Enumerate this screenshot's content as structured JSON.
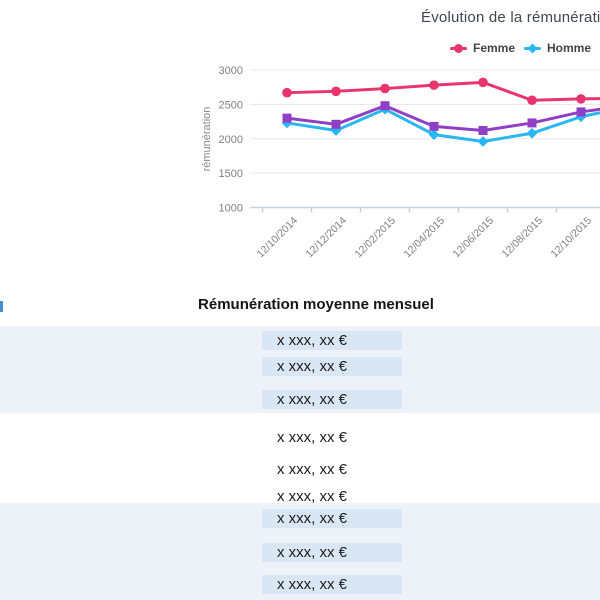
{
  "chart": {
    "title": "Évolution de la rémunération",
    "y_axis_title": "rémunération",
    "legend": [
      {
        "label": "Femme",
        "color": "#e8356e",
        "marker": "circle"
      },
      {
        "label": "Homme",
        "color": "#2ab6f2",
        "marker": "diamond"
      }
    ]
  },
  "chart_data": {
    "type": "line",
    "title": "Évolution de la rémunération",
    "xlabel": "",
    "ylabel": "rémunération",
    "categories": [
      "12/10/2014",
      "12/12/2014",
      "12/02/2015",
      "12/04/2015",
      "12/06/2015",
      "12/08/2015",
      "12/10/2015"
    ],
    "series": [
      {
        "name": "Femme",
        "color": "#e8356e",
        "marker": "circle",
        "values": [
          2670,
          2690,
          2730,
          2780,
          2820,
          2560,
          2580
        ],
        "clipped_edge_value": 2590
      },
      {
        "name": "Homme",
        "color": "#2ab6f2",
        "marker": "diamond",
        "values": [
          2230,
          2120,
          2430,
          2060,
          1960,
          2080,
          2320
        ],
        "clipped_edge_value": 2470
      },
      {
        "name": "",
        "color": "#8f3fc5",
        "marker": "square",
        "values": [
          2300,
          2210,
          2480,
          2180,
          2120,
          2230,
          2390
        ],
        "clipped_edge_value": 2490
      }
    ],
    "ylim": [
      1000,
      3000
    ],
    "y_ticks": [
      1000,
      1500,
      2000,
      2500,
      3000
    ],
    "grid": true,
    "legend_position": "top-center",
    "note": "chart and third series legend are clipped by the right edge of the viewport"
  },
  "table": {
    "header": "Rémunération moyenne mensuel",
    "groups": [
      {
        "shaded": true,
        "rows": [
          "x xxx, xx €",
          "x xxx, xx €",
          "x xxx, xx €"
        ]
      },
      {
        "shaded": false,
        "rows": [
          "x xxx, xx €",
          "x xxx, xx €",
          "x xxx, xx €"
        ]
      },
      {
        "shaded": true,
        "rows": [
          "x xxx, xx €",
          "x xxx, xx €",
          "x xxx, xx €"
        ]
      }
    ]
  },
  "colors": {
    "band_bg": "#edf2f8",
    "cell_bg": "#d9e6f4",
    "grid_line": "#e7e7e7",
    "axis_line": "#c6d3e1",
    "tick_text": "#7f7f7f",
    "title_text": "#3e4653",
    "legend_text": "#444444"
  }
}
